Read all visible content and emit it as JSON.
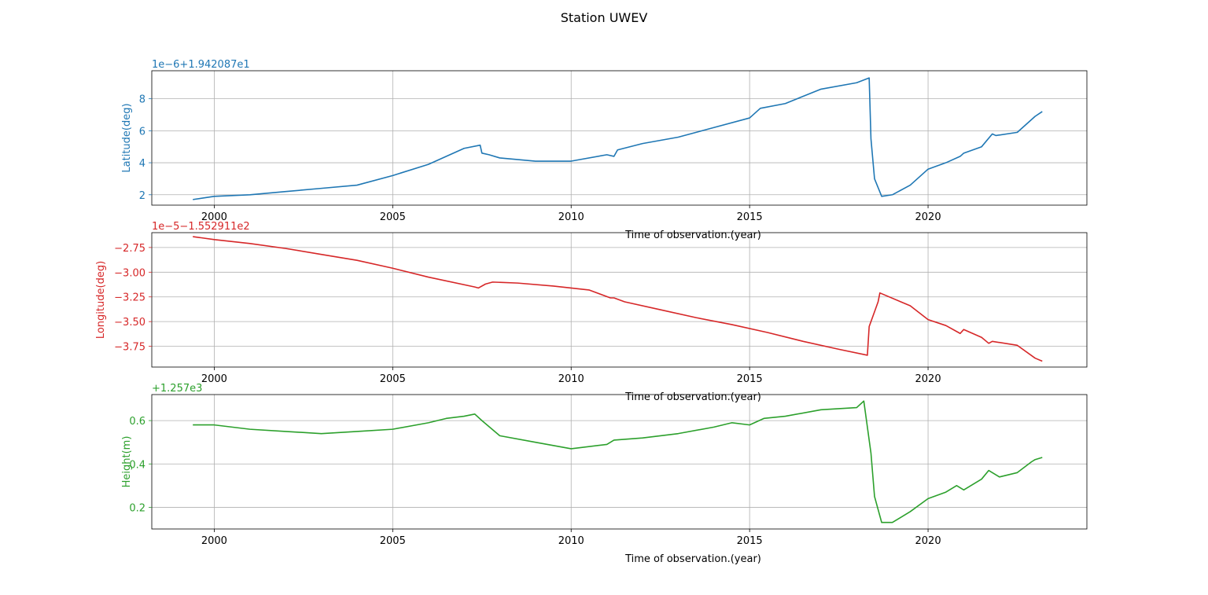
{
  "chart_data": {
    "type": "line",
    "title": "Station UWEV",
    "xlabel": "Time of observation.(year)",
    "x_ticks": [
      2000,
      2005,
      2010,
      2015,
      2020
    ],
    "xlim": [
      1998.25,
      2024.45
    ],
    "grid": true,
    "panels": [
      {
        "name": "latitude",
        "ylabel": "Latitude(deg)",
        "color": "#1f77b4",
        "offset_text": "1e−6+1.942087e1",
        "ylim": [
          1.35,
          9.75
        ],
        "y_ticks": [
          2,
          4,
          6,
          8
        ],
        "y_tick_labels": [
          "2",
          "4",
          "6",
          "8"
        ],
        "xlabel": "Time of observation.(year)",
        "series": {
          "x": [
            1999.4,
            2000.0,
            2001.0,
            2002.0,
            2003.0,
            2004.0,
            2005.0,
            2006.0,
            2007.0,
            2007.45,
            2007.5,
            2007.7,
            2008.0,
            2009.0,
            2010.0,
            2011.0,
            2011.2,
            2011.3,
            2012.0,
            2013.0,
            2014.0,
            2015.0,
            2015.3,
            2016.0,
            2017.0,
            2018.0,
            2018.35,
            2018.4,
            2018.5,
            2018.7,
            2019.0,
            2019.5,
            2020.0,
            2020.5,
            2020.9,
            2021.0,
            2021.5,
            2021.8,
            2021.9,
            2022.5,
            2023.0,
            2023.2
          ],
          "y": [
            1.7,
            1.9,
            2.0,
            2.2,
            2.4,
            2.6,
            3.2,
            3.9,
            4.9,
            5.1,
            4.6,
            4.5,
            4.3,
            4.1,
            4.1,
            4.5,
            4.4,
            4.8,
            5.2,
            5.6,
            6.2,
            6.8,
            7.4,
            7.7,
            8.6,
            9.0,
            9.3,
            5.5,
            3.0,
            1.9,
            2.0,
            2.6,
            3.6,
            4.0,
            4.4,
            4.6,
            5.0,
            5.8,
            5.7,
            5.9,
            6.9,
            7.2
          ]
        }
      },
      {
        "name": "longitude",
        "ylabel": "Longitude(deg)",
        "color": "#d62728",
        "offset_text": "1e−5−1.552911e2",
        "ylim": [
          -3.96,
          -2.6
        ],
        "y_ticks": [
          -2.75,
          -3.0,
          -3.25,
          -3.5,
          -3.75
        ],
        "y_tick_labels": [
          "−2.75",
          "−3.00",
          "−3.25",
          "−3.50",
          "−3.75"
        ],
        "xlabel": "Time of observation.(year)",
        "series": {
          "x": [
            1999.4,
            2000.0,
            2001.0,
            2002.0,
            2003.0,
            2004.0,
            2005.0,
            2006.0,
            2007.3,
            2007.4,
            2007.6,
            2007.8,
            2008.5,
            2009.5,
            2010.5,
            2011.1,
            2011.2,
            2011.5,
            2012.5,
            2013.5,
            2014.5,
            2015.5,
            2016.5,
            2017.5,
            2018.3,
            2018.35,
            2018.5,
            2018.6,
            2018.65,
            2019.5,
            2020.0,
            2020.5,
            2020.9,
            2021.0,
            2021.5,
            2021.7,
            2021.8,
            2022.5,
            2023.0,
            2023.2
          ],
          "y": [
            -2.64,
            -2.67,
            -2.71,
            -2.76,
            -2.82,
            -2.88,
            -2.96,
            -3.05,
            -3.15,
            -3.16,
            -3.12,
            -3.1,
            -3.11,
            -3.14,
            -3.18,
            -3.26,
            -3.26,
            -3.3,
            -3.38,
            -3.46,
            -3.53,
            -3.61,
            -3.7,
            -3.78,
            -3.84,
            -3.55,
            -3.4,
            -3.3,
            -3.21,
            -3.34,
            -3.48,
            -3.54,
            -3.62,
            -3.58,
            -3.66,
            -3.72,
            -3.7,
            -3.74,
            -3.87,
            -3.9
          ]
        }
      },
      {
        "name": "height",
        "ylabel": "Height(m)",
        "color": "#2ca02c",
        "offset_text": "+1.257e3",
        "ylim": [
          0.1,
          0.72
        ],
        "y_ticks": [
          0.2,
          0.4,
          0.6
        ],
        "y_tick_labels": [
          "0.2",
          "0.4",
          "0.6"
        ],
        "xlabel": "Time of observation.(year)",
        "series": {
          "x": [
            1999.4,
            2000.0,
            2001.0,
            2002.0,
            2003.0,
            2004.0,
            2005.0,
            2006.0,
            2006.5,
            2007.0,
            2007.3,
            2007.5,
            2008.0,
            2009.0,
            2010.0,
            2011.0,
            2011.2,
            2012.0,
            2013.0,
            2014.0,
            2014.5,
            2015.0,
            2015.4,
            2016.0,
            2017.0,
            2018.0,
            2018.2,
            2018.4,
            2018.5,
            2018.7,
            2019.0,
            2019.5,
            2020.0,
            2020.5,
            2020.8,
            2021.0,
            2021.5,
            2021.7,
            2022.0,
            2022.5,
            2022.9,
            2023.0,
            2023.2
          ],
          "y": [
            0.58,
            0.58,
            0.56,
            0.55,
            0.54,
            0.55,
            0.56,
            0.59,
            0.61,
            0.62,
            0.63,
            0.6,
            0.53,
            0.5,
            0.47,
            0.49,
            0.51,
            0.52,
            0.54,
            0.57,
            0.59,
            0.58,
            0.61,
            0.62,
            0.65,
            0.66,
            0.69,
            0.45,
            0.25,
            0.13,
            0.13,
            0.18,
            0.24,
            0.27,
            0.3,
            0.28,
            0.33,
            0.37,
            0.34,
            0.36,
            0.41,
            0.42,
            0.43
          ]
        }
      }
    ]
  }
}
